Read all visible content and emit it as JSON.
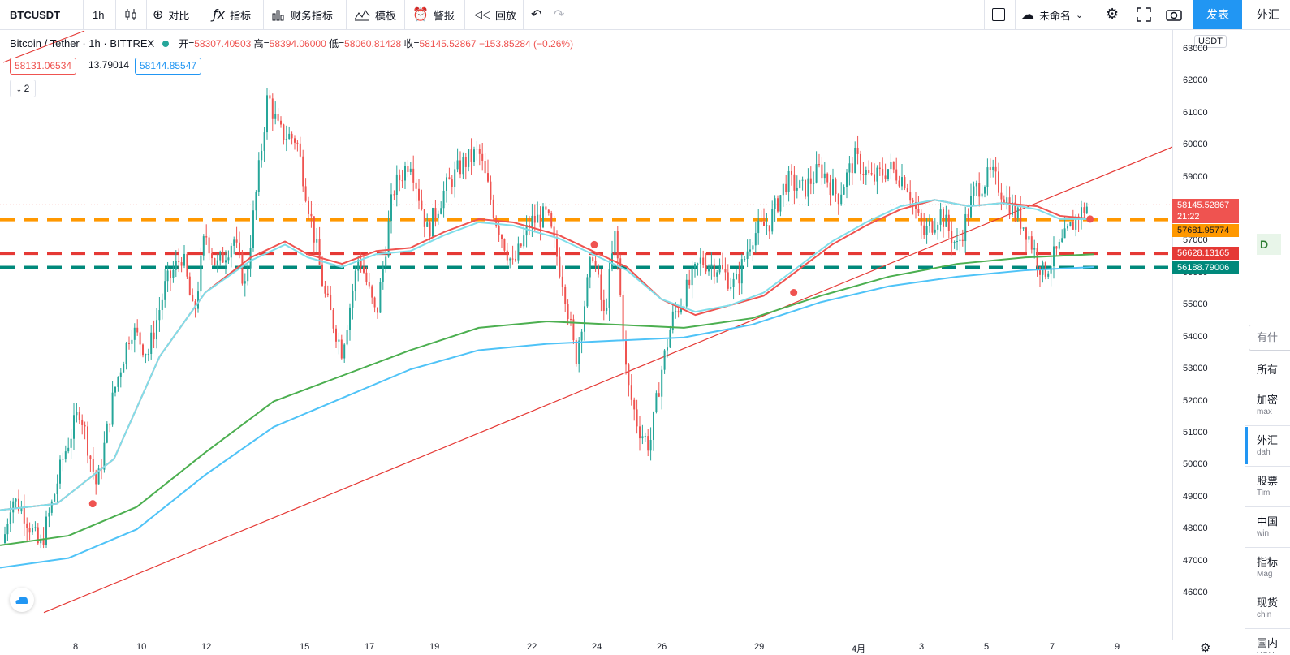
{
  "toolbar": {
    "symbol": "BTCUSDT",
    "interval": "1h",
    "compare": "对比",
    "indicators": "指标",
    "financials": "财务指标",
    "templates": "模板",
    "alert": "警报",
    "replay": "回放",
    "layout_name": "未命名",
    "publish": "发表"
  },
  "right_panel": {
    "tab": "外汇",
    "d_badge": "D",
    "search_placeholder": "有什",
    "header": "所有",
    "items": [
      {
        "title": "加密",
        "sub": "max"
      },
      {
        "title": "外汇",
        "sub": "dah"
      },
      {
        "title": "股票",
        "sub": "Tim"
      },
      {
        "title": "中国",
        "sub": "win"
      },
      {
        "title": "指标",
        "sub": "Mag"
      },
      {
        "title": "现货",
        "sub": "chin"
      },
      {
        "title": "国内",
        "sub": "YOU"
      }
    ]
  },
  "legend": {
    "title": "Bitcoin / Tether · 1h · BITTREX",
    "open_label": "开=",
    "open": "58307.40503",
    "high_label": "高=",
    "high": "58394.06000",
    "low_label": "低=",
    "low": "58060.81428",
    "close_label": "收=",
    "close": "58145.52867",
    "change": "−153.85284 (−0.26%)",
    "indicator_value1": "58131.06534",
    "indicator_value2": "13.79014",
    "indicator_value3": "58144.85547",
    "collapsed_count": "2"
  },
  "price_axis": {
    "currency": "USDT",
    "ticks": [
      "63000",
      "62000",
      "61000",
      "60000",
      "59000",
      "58000",
      "57000",
      "56000",
      "55000",
      "54000",
      "53000",
      "52000",
      "51000",
      "50000",
      "49000",
      "48000",
      "47000",
      "46000"
    ],
    "badges": [
      {
        "value": "58145.52867",
        "sub": "21:22",
        "color": "#ef5350"
      },
      {
        "value": "57681.95774",
        "color": "#ff9800"
      },
      {
        "value": "56628.13165",
        "color": "#e53935"
      },
      {
        "value": "56188.79006",
        "color": "#00897b"
      }
    ]
  },
  "time_axis": {
    "ticks": [
      "8",
      "10",
      "12",
      "15",
      "17",
      "19",
      "22",
      "24",
      "26",
      "29",
      "4月",
      "3",
      "5",
      "7",
      "9"
    ]
  },
  "chart_data": {
    "type": "candlestick",
    "symbol": "BTCUSDT",
    "interval": "1h",
    "ylim": [
      45400,
      63200
    ],
    "price_line": 58145.52867,
    "horizontal_levels": [
      {
        "value": 57681.95774,
        "color": "#ff9800",
        "style": "dashed"
      },
      {
        "value": 56628.13165,
        "color": "#e53935",
        "style": "dashed"
      },
      {
        "value": 56188.79006,
        "color": "#00897b",
        "style": "dashed"
      }
    ],
    "trendline": {
      "from": [
        0.0,
        45400
      ],
      "to": [
        1.0,
        59950
      ],
      "color": "#e53935"
    },
    "close_path": [
      [
        0.0,
        47000
      ],
      [
        0.01,
        49000
      ],
      [
        0.02,
        48600
      ],
      [
        0.035,
        47400
      ],
      [
        0.045,
        48700
      ],
      [
        0.055,
        50200
      ],
      [
        0.07,
        51800
      ],
      [
        0.085,
        49300
      ],
      [
        0.1,
        52300
      ],
      [
        0.115,
        54300
      ],
      [
        0.13,
        53500
      ],
      [
        0.145,
        55600
      ],
      [
        0.16,
        56600
      ],
      [
        0.17,
        54600
      ],
      [
        0.18,
        57300
      ],
      [
        0.19,
        56200
      ],
      [
        0.205,
        57100
      ],
      [
        0.215,
        55600
      ],
      [
        0.225,
        58600
      ],
      [
        0.235,
        61600
      ],
      [
        0.245,
        60400
      ],
      [
        0.26,
        60200
      ],
      [
        0.275,
        57300
      ],
      [
        0.285,
        55300
      ],
      [
        0.3,
        53600
      ],
      [
        0.315,
        56600
      ],
      [
        0.33,
        54600
      ],
      [
        0.345,
        58600
      ],
      [
        0.36,
        59600
      ],
      [
        0.375,
        57300
      ],
      [
        0.39,
        58600
      ],
      [
        0.405,
        59400
      ],
      [
        0.42,
        59800
      ],
      [
        0.435,
        57700
      ],
      [
        0.45,
        56200
      ],
      [
        0.465,
        57600
      ],
      [
        0.48,
        57800
      ],
      [
        0.495,
        55600
      ],
      [
        0.505,
        53300
      ],
      [
        0.52,
        56700
      ],
      [
        0.53,
        54600
      ],
      [
        0.54,
        57300
      ],
      [
        0.55,
        52600
      ],
      [
        0.56,
        51200
      ],
      [
        0.57,
        50600
      ],
      [
        0.58,
        52900
      ],
      [
        0.59,
        54600
      ],
      [
        0.6,
        55300
      ],
      [
        0.615,
        56400
      ],
      [
        0.63,
        56200
      ],
      [
        0.645,
        55600
      ],
      [
        0.66,
        57200
      ],
      [
        0.675,
        57600
      ],
      [
        0.69,
        58900
      ],
      [
        0.705,
        58600
      ],
      [
        0.72,
        59300
      ],
      [
        0.735,
        58400
      ],
      [
        0.75,
        59600
      ],
      [
        0.765,
        58900
      ],
      [
        0.78,
        59300
      ],
      [
        0.795,
        58900
      ],
      [
        0.81,
        57200
      ],
      [
        0.825,
        57900
      ],
      [
        0.84,
        56800
      ],
      [
        0.855,
        58600
      ],
      [
        0.87,
        59100
      ],
      [
        0.885,
        58200
      ],
      [
        0.9,
        57400
      ],
      [
        0.915,
        56000
      ],
      [
        0.93,
        56800
      ],
      [
        0.945,
        57800
      ],
      [
        0.955,
        58145
      ]
    ],
    "series": [
      {
        "values": [
          [
            0,
            48600
          ],
          [
            0.05,
            48800
          ],
          [
            0.1,
            50200
          ],
          [
            0.14,
            53400
          ],
          [
            0.18,
            55400
          ],
          [
            0.22,
            56500
          ],
          [
            0.25,
            57000
          ],
          [
            0.27,
            56600
          ],
          [
            0.3,
            56300
          ],
          [
            0.33,
            56700
          ],
          [
            0.36,
            56800
          ],
          [
            0.39,
            57300
          ],
          [
            0.42,
            57700
          ],
          [
            0.45,
            57600
          ],
          [
            0.49,
            57200
          ],
          [
            0.52,
            56700
          ],
          [
            0.55,
            56200
          ],
          [
            0.58,
            55200
          ],
          [
            0.61,
            54700
          ],
          [
            0.64,
            55000
          ],
          [
            0.67,
            55300
          ],
          [
            0.7,
            56100
          ],
          [
            0.73,
            56900
          ],
          [
            0.76,
            57500
          ],
          [
            0.79,
            58000
          ],
          [
            0.82,
            58300
          ],
          [
            0.85,
            58100
          ],
          [
            0.88,
            58200
          ],
          [
            0.91,
            58100
          ],
          [
            0.93,
            57800
          ],
          [
            0.96,
            57700
          ]
        ],
        "color": "#ef5350",
        "width": 2
      },
      {
        "values": [
          [
            0,
            48600
          ],
          [
            0.05,
            48800
          ],
          [
            0.1,
            50200
          ],
          [
            0.14,
            53400
          ],
          [
            0.18,
            55400
          ],
          [
            0.22,
            56400
          ],
          [
            0.25,
            56900
          ],
          [
            0.27,
            56500
          ],
          [
            0.3,
            56200
          ],
          [
            0.33,
            56600
          ],
          [
            0.36,
            56700
          ],
          [
            0.39,
            57200
          ],
          [
            0.42,
            57600
          ],
          [
            0.45,
            57500
          ],
          [
            0.49,
            57100
          ],
          [
            0.52,
            56600
          ],
          [
            0.55,
            56100
          ],
          [
            0.58,
            55200
          ],
          [
            0.61,
            54800
          ],
          [
            0.64,
            55000
          ],
          [
            0.67,
            55400
          ],
          [
            0.7,
            56200
          ],
          [
            0.73,
            57000
          ],
          [
            0.76,
            57600
          ],
          [
            0.79,
            58100
          ],
          [
            0.82,
            58300
          ],
          [
            0.85,
            58100
          ],
          [
            0.88,
            58200
          ],
          [
            0.91,
            58000
          ],
          [
            0.93,
            57700
          ],
          [
            0.96,
            57700
          ]
        ],
        "color": "#80deea",
        "width": 2
      },
      {
        "values": [
          [
            0,
            47500
          ],
          [
            0.06,
            47800
          ],
          [
            0.12,
            48700
          ],
          [
            0.18,
            50400
          ],
          [
            0.24,
            52000
          ],
          [
            0.3,
            52800
          ],
          [
            0.36,
            53600
          ],
          [
            0.42,
            54300
          ],
          [
            0.48,
            54500
          ],
          [
            0.54,
            54400
          ],
          [
            0.6,
            54300
          ],
          [
            0.66,
            54600
          ],
          [
            0.72,
            55300
          ],
          [
            0.78,
            55900
          ],
          [
            0.84,
            56300
          ],
          [
            0.9,
            56500
          ],
          [
            0.96,
            56600
          ]
        ],
        "color": "#4caf50",
        "width": 2
      },
      {
        "values": [
          [
            0,
            46800
          ],
          [
            0.06,
            47100
          ],
          [
            0.12,
            48000
          ],
          [
            0.18,
            49700
          ],
          [
            0.24,
            51200
          ],
          [
            0.3,
            52100
          ],
          [
            0.36,
            53000
          ],
          [
            0.42,
            53600
          ],
          [
            0.48,
            53800
          ],
          [
            0.54,
            53900
          ],
          [
            0.6,
            54000
          ],
          [
            0.66,
            54400
          ],
          [
            0.72,
            55100
          ],
          [
            0.78,
            55600
          ],
          [
            0.84,
            55900
          ],
          [
            0.9,
            56100
          ],
          [
            0.96,
            56200
          ]
        ],
        "color": "#4fc3f7",
        "width": 2
      }
    ],
    "markers": [
      [
        0.06,
        48800
      ],
      [
        0.5,
        56900
      ],
      [
        0.675,
        55400
      ],
      [
        0.935,
        57700
      ]
    ]
  }
}
